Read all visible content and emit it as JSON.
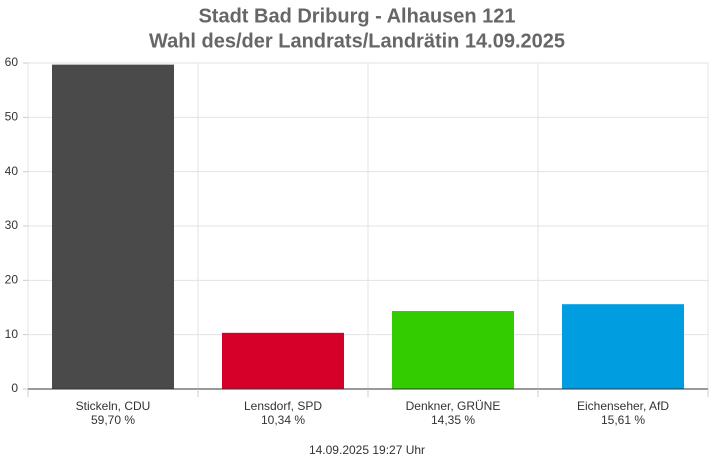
{
  "chart_data": {
    "type": "bar",
    "title": "Stadt Bad Driburg - Alhausen 121",
    "subtitle": "Wahl des/der Landrats/Landrätin 14.09.2025",
    "categories": [
      "Stickeln, CDU",
      "Lensdorf, SPD",
      "Denkner, GRÜNE",
      "Eichenseher, AfD"
    ],
    "values": [
      59.7,
      10.34,
      14.35,
      15.61
    ],
    "value_labels": [
      "59,70 %",
      "10,34 %",
      "14,35 %",
      "15,61 %"
    ],
    "colors": [
      "#4a4a4a",
      "#d5002a",
      "#33cc00",
      "#009ee0"
    ],
    "ylim": [
      0,
      60
    ],
    "yticks": [
      0,
      10,
      20,
      30,
      40,
      50,
      60
    ],
    "grid": true,
    "footer": "14.09.2025 19:27 Uhr"
  }
}
